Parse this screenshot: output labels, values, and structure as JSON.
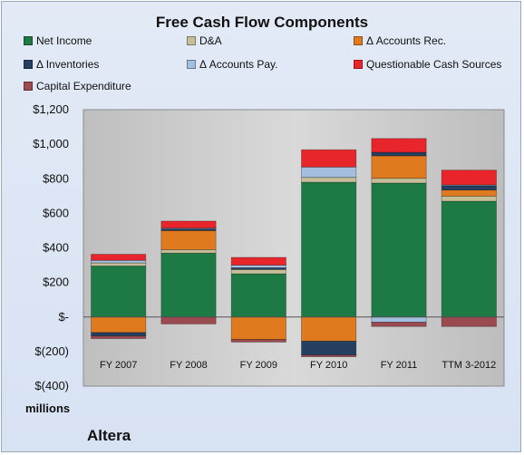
{
  "chart_data": {
    "type": "bar",
    "stacked": true,
    "title": "Free Cash Flow Components",
    "ylabel": "millions",
    "ylim": [
      -400,
      1200
    ],
    "yticks": [
      -400,
      -200,
      0,
      200,
      400,
      600,
      800,
      1000,
      1200
    ],
    "ytick_labels": [
      "$(400)",
      "$(200)",
      "$-",
      "$200",
      "$400",
      "$600",
      "$800",
      "$1,000",
      "$1,200"
    ],
    "categories": [
      "FY 2007",
      "FY 2008",
      "FY 2009",
      "FY 2010",
      "FY 2011",
      "TTM 3-2012"
    ],
    "series": [
      {
        "name": "Net Income",
        "color": "#1e7a45",
        "values": [
          295,
          370,
          250,
          780,
          775,
          670
        ]
      },
      {
        "name": "D&A",
        "color": "#c4bd97",
        "values": [
          18,
          20,
          25,
          28,
          28,
          30
        ]
      },
      {
        "name": "Δ Accounts Rec.",
        "color": "#e07a1f",
        "values": [
          -90,
          110,
          -130,
          -140,
          130,
          35
        ]
      },
      {
        "name": "Δ Inventories",
        "color": "#243f60",
        "values": [
          -20,
          10,
          10,
          -80,
          20,
          25
        ]
      },
      {
        "name": "Δ Accounts Pay.",
        "color": "#a4bedf",
        "values": [
          15,
          5,
          15,
          60,
          -30,
          5
        ]
      },
      {
        "name": "Questionable Cash Sources",
        "color": "#e8252b",
        "values": [
          35,
          40,
          45,
          100,
          80,
          85
        ]
      },
      {
        "name": "Capital Expenditure",
        "color": "#9b4a4f",
        "values": [
          -15,
          -40,
          -15,
          -10,
          -25,
          -55
        ]
      }
    ],
    "legend_position": "top",
    "grid": false
  },
  "labels": {
    "y_unit": "millions",
    "company": "Altera"
  }
}
